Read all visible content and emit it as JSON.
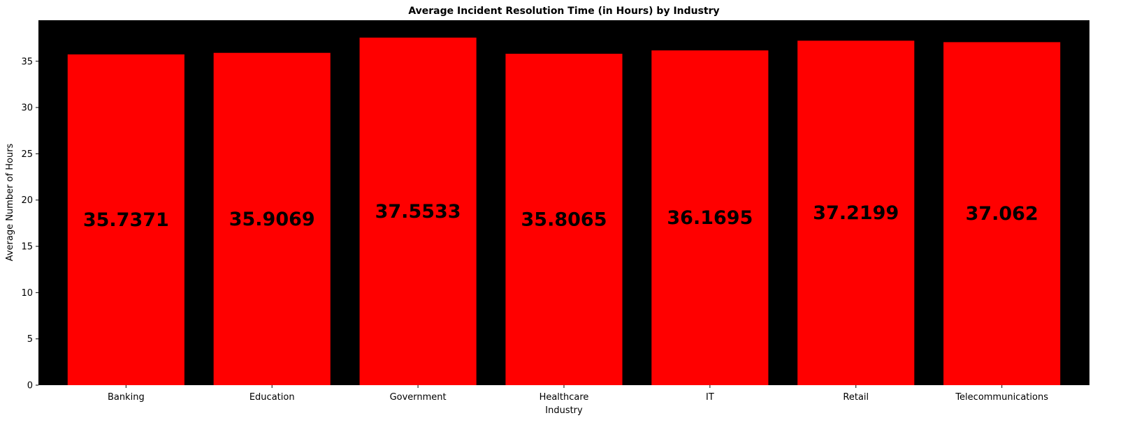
{
  "chart_data": {
    "type": "bar",
    "title": "Average Incident Resolution Time (in Hours) by Industry",
    "xlabel": "Industry",
    "ylabel": "Average Number of Hours",
    "categories": [
      "Banking",
      "Education",
      "Government",
      "Healthcare",
      "IT",
      "Retail",
      "Telecommunications"
    ],
    "values": [
      35.7371,
      35.9069,
      37.5533,
      35.8065,
      36.1695,
      37.2199,
      37.062
    ],
    "value_labels": [
      "35.7371",
      "35.9069",
      "37.5533",
      "35.8065",
      "36.1695",
      "37.2199",
      "37.062"
    ],
    "ylim": [
      0,
      39.43
    ],
    "yticks": [
      0,
      5,
      10,
      15,
      20,
      25,
      30,
      35
    ],
    "grid": false,
    "legend": "none",
    "colors": {
      "bar": "#ff0000",
      "plot_background": "#000000",
      "figure_background": "#ffffff",
      "text": "#000000"
    }
  }
}
